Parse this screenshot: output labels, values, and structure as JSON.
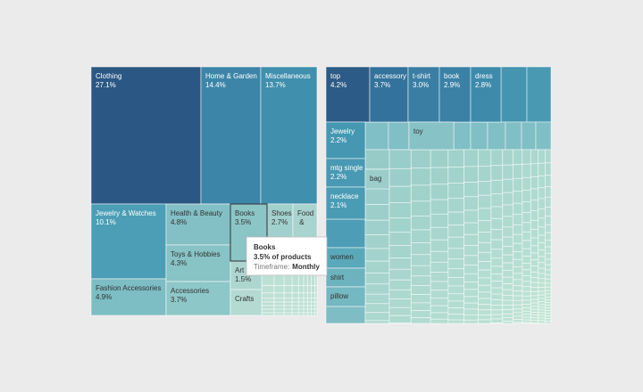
{
  "chart_data": [
    {
      "type": "treemap",
      "categories": [
        "Clothing",
        "Home & Garden",
        "Miscellaneous",
        "Jewelry & Watches",
        "Fashion Accessories",
        "Health & Beauty",
        "Toys & Hobbies",
        "Accessories",
        "Books",
        "Shoes",
        "Food &",
        "Art",
        "Crafts"
      ],
      "values": [
        27.1,
        14.4,
        13.7,
        10.1,
        4.9,
        4.8,
        4.3,
        3.7,
        3.5,
        2.7,
        2.4,
        1.5,
        1.3
      ],
      "value_labels": [
        "27.1%",
        "14.4%",
        "13.7%",
        "10.1%",
        "4.9%",
        "4.8%",
        "4.3%",
        "3.7%",
        "3.5%",
        "2.7%",
        null,
        "1.5%",
        null
      ],
      "colors": [
        "#2a5783",
        "#3c85a8",
        "#3f8fad",
        "#4b9eb5",
        "#7dbdc4",
        "#82c0c5",
        "#88c3c6",
        "#8ec7c7",
        "#8cc5c6",
        "#a2d0cc",
        "#a8d3ce",
        "#add6cf",
        "#b4dad2"
      ],
      "tooltip": {
        "title": "Books",
        "value": "3.5% of products",
        "field_label": "Timeframe:",
        "field_value": "Monthly"
      }
    },
    {
      "type": "treemap",
      "categories": [
        "top",
        "accessory",
        "t-shirt",
        "book",
        "dress",
        "Jewelry",
        "mtg single",
        "necklace",
        "women",
        "shirt",
        "pillow",
        "toy",
        "bag"
      ],
      "values": [
        4.2,
        3.7,
        3.0,
        2.9,
        2.8,
        2.2,
        2.2,
        2.1,
        1.4,
        1.3,
        1.3,
        1.0,
        0.8
      ],
      "value_labels": [
        "4.2%",
        "3.7%",
        "3.0%",
        "2.9%",
        "2.8%",
        "2.2%",
        "2.2%",
        "2.1%",
        null,
        null,
        null,
        null,
        null
      ],
      "colors": [
        "#2b5b86",
        "#33729b",
        "#3a7ea3",
        "#3b80a5",
        "#3e8aab",
        "#4597b2",
        "#4899b3",
        "#4a9cb5",
        "#5aa9ba",
        "#6cb3be",
        "#74b8c1",
        "#86c2c6",
        "#9ccdcb"
      ]
    }
  ]
}
